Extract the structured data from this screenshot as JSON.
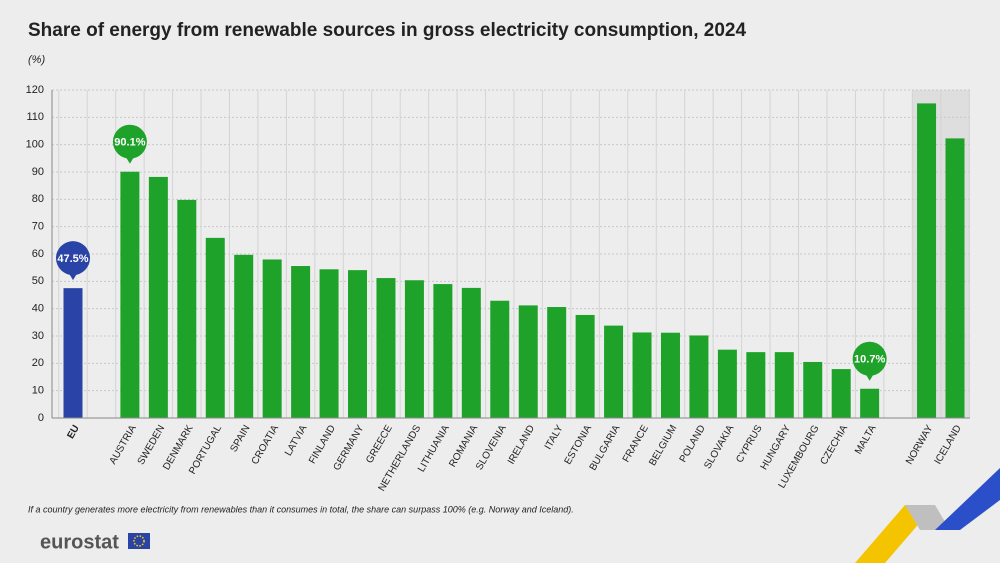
{
  "chart_data": {
    "type": "bar",
    "title": "Share of energy from renewable sources in gross electricity consumption, 2024",
    "y_label": "(%)",
    "categories": [
      "EU",
      null,
      "AUSTRIA",
      "SWEDEN",
      "DENMARK",
      "PORTUGAL",
      "SPAIN",
      "CROATIA",
      "LATVIA",
      "FINLAND",
      "GERMANY",
      "GREECE",
      "NETHERLANDS",
      "LITHUANIA",
      "ROMANIA",
      "SLOVENIA",
      "IRELAND",
      "ITALY",
      "ESTONIA",
      "BULGARIA",
      "FRANCE",
      "BELGIUM",
      "POLAND",
      "SLOVAKIA",
      "CYPRUS",
      "HUNGARY",
      "LUXEMBOURG",
      "CZECHIA",
      "MALTA",
      null,
      "NORWAY",
      "ICELAND"
    ],
    "values": [
      47.5,
      null,
      90.1,
      88.2,
      79.8,
      65.9,
      59.7,
      58.0,
      55.6,
      54.4,
      54.1,
      51.2,
      50.4,
      49.0,
      47.6,
      42.9,
      41.2,
      40.6,
      37.7,
      33.8,
      31.3,
      31.2,
      30.2,
      25.0,
      24.1,
      24.1,
      20.5,
      17.9,
      10.7,
      null,
      115.1,
      102.3
    ],
    "value_labels": [
      "47.5%",
      null,
      "90.1%",
      null,
      null,
      null,
      null,
      null,
      null,
      null,
      null,
      null,
      null,
      null,
      null,
      null,
      null,
      null,
      null,
      null,
      null,
      null,
      null,
      null,
      null,
      null,
      null,
      null,
      "10.7%",
      null,
      null,
      null
    ],
    "color": "#1fa22a",
    "highlight_color": "#2a43a6",
    "ylim": [
      0,
      120
    ],
    "yticks": [
      0,
      10,
      20,
      30,
      40,
      50,
      60,
      70,
      80,
      90,
      100,
      110,
      120
    ],
    "grid": true,
    "footnote": "If a country generates more electricity from renewables than it consumes in total, the share can surpass 100% (e.g. Norway and Iceland).",
    "logo": "eurostat"
  }
}
